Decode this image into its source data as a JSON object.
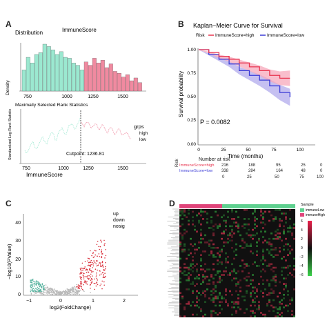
{
  "panels": {
    "a": "A",
    "b": "B",
    "c": "C",
    "d": "D"
  },
  "panel_a": {
    "hist_title": "Distribution",
    "hist_subtitle": "ImmuneScore",
    "hist_ylabel": "Density",
    "msrs_title": "Maximally Selected Rank Statistics",
    "msrs_ylabel": "Standardized Log-Rank Statistic",
    "xlabel": "ImmuneScore",
    "xticks_hist": [
      "750",
      "1000",
      "1250",
      "1500"
    ],
    "xticks_msrs": [
      "750",
      "1000",
      "1250",
      "1500"
    ],
    "cutpoint_label": "Cutpoint: 1236.81",
    "grps_title": "grps",
    "grps_items": [
      "high",
      "low"
    ],
    "colors": {
      "low": "#9be8d0",
      "high": "#f08aa0",
      "low_dark": "#5fcfae",
      "high_dark": "#e0607f"
    }
  },
  "panel_b": {
    "title": "Kaplan−Meier Curve for Survival",
    "legend_title": "Risk",
    "legend_items": [
      "ImmuneScore=high",
      "ImmuneScore=low"
    ],
    "ylabel": "Survival probability",
    "xlabel": "Time (months)",
    "yticks": [
      "1.00",
      "0.75",
      "0.50",
      "0.25",
      "0.00"
    ],
    "xticks": [
      "0",
      "25",
      "50",
      "75",
      "100"
    ],
    "pvalue": "P = 0.0082",
    "risk_table_title": "Number at risk",
    "risk_label": "Risk",
    "risk_rows": [
      {
        "name": "ImmuneScore=high",
        "values": [
          "216",
          "188",
          "95",
          "25",
          "0"
        ]
      },
      {
        "name": "ImmuneScore=low",
        "values": [
          "338",
          "284",
          "164",
          "48",
          "0"
        ]
      }
    ],
    "colors": {
      "high": "#e8344f",
      "low": "#3b3bd6",
      "high_fill": "#f7a8bb",
      "low_fill": "#b7b0ee"
    }
  },
  "panel_c": {
    "ylabel": "−log10(PValue)",
    "xlabel": "log2(FoldChange)",
    "yticks": [
      "0",
      "10",
      "20",
      "30",
      "40"
    ],
    "xticks": [
      "−1",
      "0",
      "1",
      "2"
    ],
    "legend": [
      "up",
      "down",
      "nosig"
    ],
    "colors": {
      "up": "#d9323d",
      "down": "#58b4a0",
      "nosig": "#b8b8b8"
    }
  },
  "panel_d": {
    "legend_title": "Sample",
    "legend_scale": [
      "6",
      "4",
      "2",
      "0",
      "−2",
      "−4",
      "−6"
    ],
    "legend_samples": [
      "immuneLow",
      "immuneHigh"
    ],
    "colors": {
      "immuneLow": "#5fd08f",
      "immuneHigh": "#e0447a"
    }
  },
  "chart_data": [
    {
      "type": "bar",
      "title": "Distribution",
      "subtitle": "ImmuneScore",
      "xlabel": "ImmuneScore",
      "ylabel": "Density",
      "series": [
        {
          "name": "low",
          "values": [
            0.45,
            0.72,
            0.6,
            0.78,
            0.82,
            1.0,
            0.95,
            0.88,
            0.78,
            0.84,
            0.72,
            0.7,
            0.6,
            0.55,
            0.45
          ]
        },
        {
          "name": "high",
          "values": [
            0.62,
            0.55,
            0.7,
            0.6,
            0.66,
            0.5,
            0.58,
            0.42,
            0.38,
            0.3,
            0.35,
            0.22,
            0.28,
            0.18
          ]
        }
      ]
    },
    {
      "type": "line",
      "title": "Kaplan−Meier Curve for Survival",
      "xlabel": "Time (months)",
      "ylabel": "Survival probability",
      "ylim": [
        0,
        1
      ],
      "xlim": [
        0,
        100
      ],
      "series": [
        {
          "name": "ImmuneScore=high",
          "x": [
            0,
            10,
            20,
            30,
            40,
            50,
            60,
            70,
            80,
            90
          ],
          "y": [
            1.0,
            0.97,
            0.93,
            0.9,
            0.86,
            0.82,
            0.78,
            0.73,
            0.7,
            0.7
          ]
        },
        {
          "name": "ImmuneScore=low",
          "x": [
            0,
            10,
            20,
            30,
            40,
            50,
            60,
            70,
            80,
            90
          ],
          "y": [
            1.0,
            0.95,
            0.9,
            0.85,
            0.78,
            0.73,
            0.68,
            0.62,
            0.55,
            0.5
          ]
        }
      ]
    }
  ]
}
